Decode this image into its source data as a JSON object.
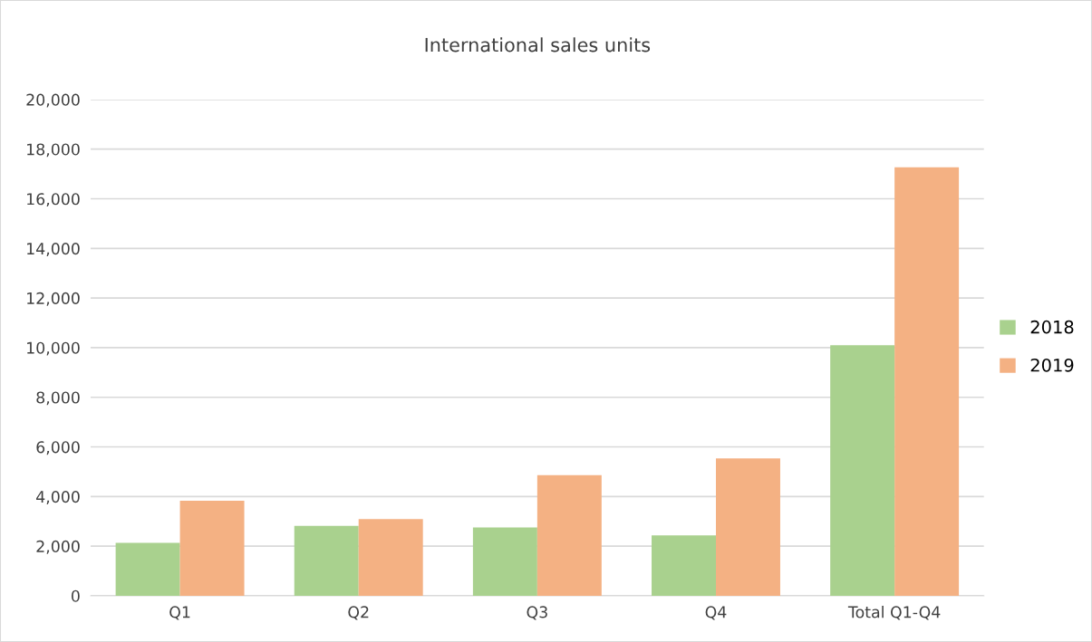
{
  "chart_data": {
    "type": "bar",
    "title": "International sales units",
    "categories": [
      "Q1",
      "Q2",
      "Q3",
      "Q4",
      "Total Q1-Q4"
    ],
    "series": [
      {
        "name": "2018",
        "color": "#a9d18e",
        "values": [
          2130,
          2820,
          2750,
          2430,
          10100
        ]
      },
      {
        "name": "2019",
        "color": "#f4b183",
        "values": [
          3830,
          3090,
          4860,
          5540,
          17270
        ]
      }
    ],
    "ylim": [
      0,
      20000
    ],
    "yticks": [
      {
        "value": 0,
        "label": "0"
      },
      {
        "value": 2000,
        "label": "2,000"
      },
      {
        "value": 4000,
        "label": "4,000"
      },
      {
        "value": 6000,
        "label": "6,000"
      },
      {
        "value": 8000,
        "label": "8,000"
      },
      {
        "value": 10000,
        "label": "10,000"
      },
      {
        "value": 12000,
        "label": "12,000"
      },
      {
        "value": 14000,
        "label": "14,000"
      },
      {
        "value": 16000,
        "label": "16,000"
      },
      {
        "value": 18000,
        "label": "18,000"
      },
      {
        "value": 20000,
        "label": "20,000"
      }
    ],
    "grid": "y",
    "legend": "right"
  }
}
